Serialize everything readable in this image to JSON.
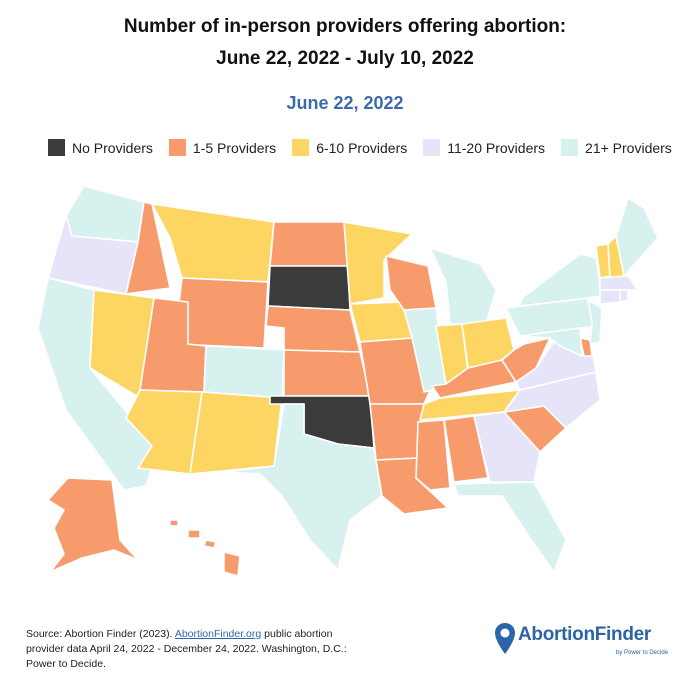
{
  "title_line1": "Number of in-person providers offering abortion:",
  "title_line2": "June 22, 2022 - July 10, 2022",
  "date_label": "June 22, 2022",
  "colors": {
    "none": "#3b3b3b",
    "low": "#f79b6c",
    "mid": "#fdd562",
    "high": "#e6e4f8",
    "top": "#d7f1ee"
  },
  "legend": [
    {
      "key": "none",
      "label": "No Providers"
    },
    {
      "key": "low",
      "label": "1-5 Providers"
    },
    {
      "key": "mid",
      "label": "6-10 Providers"
    },
    {
      "key": "high",
      "label": "11-20 Providers"
    },
    {
      "key": "top",
      "label": "21+ Providers"
    }
  ],
  "states": {
    "WA": "top",
    "OR": "high",
    "CA": "top",
    "ID": "low",
    "NV": "mid",
    "MT": "mid",
    "WY": "low",
    "UT": "low",
    "AZ": "mid",
    "CO": "top",
    "NM": "mid",
    "ND": "low",
    "SD": "none",
    "NE": "low",
    "KS": "low",
    "OK": "none",
    "TX": "top",
    "MN": "mid",
    "IA": "mid",
    "MO": "low",
    "AR": "low",
    "LA": "low",
    "WI": "low",
    "IL": "top",
    "MI": "top",
    "IN": "mid",
    "OH": "mid",
    "KY": "low",
    "TN": "mid",
    "MS": "low",
    "AL": "low",
    "GA": "high",
    "FL": "top",
    "SC": "low",
    "NC": "high",
    "VA": "high",
    "WV": "low",
    "PA": "top",
    "NY": "top",
    "VT": "mid",
    "NH": "mid",
    "ME": "top",
    "MA": "high",
    "CT": "high",
    "RI": "high",
    "NJ": "top",
    "DE": "low",
    "MD": "top",
    "AK": "low",
    "HI": "low"
  },
  "source": {
    "prefix": "Source: Abortion Finder (2023). ",
    "link": "AbortionFinder.org",
    "suffix": " public abortion provider data April 24, 2022 - December 24, 2022. Washington, D.C.: Power to Decide."
  },
  "logo": {
    "name": "AbortionFinder",
    "tagline": "by Power to Decide",
    "brand_color": "#2b64a8"
  }
}
